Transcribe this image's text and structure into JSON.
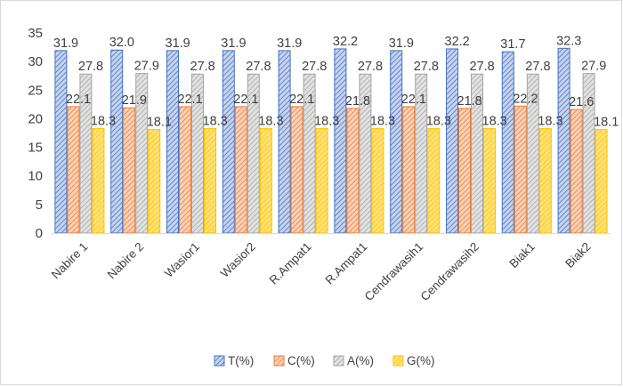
{
  "chart_data": {
    "type": "bar",
    "categories": [
      "Nabire 1",
      "Nabire 2",
      "Wasior1",
      "Wasior2",
      "R.Ampat1",
      "R.Ampat1",
      "Cendrawasih1",
      "Cendrawasih2",
      "Biak1",
      "Biak2"
    ],
    "series": [
      {
        "name": "T(%)",
        "values": [
          31.9,
          32.0,
          31.9,
          31.9,
          31.9,
          32.2,
          31.9,
          32.2,
          31.7,
          32.3
        ],
        "labels": [
          "31.9",
          "32.0",
          "31.9",
          "31.9",
          "31.9",
          "32.2",
          "31.9",
          "32.2",
          "31.7",
          "32.3"
        ],
        "color": "#4472C4",
        "fill": "#c7d4ee"
      },
      {
        "name": "C(%)",
        "values": [
          22.1,
          21.9,
          22.1,
          22.1,
          22.1,
          21.8,
          22.1,
          21.8,
          22.2,
          21.6
        ],
        "labels": [
          "22.1",
          "21.9",
          "22.1",
          "22.1",
          "22.1",
          "21.8",
          "22.1",
          "21.8",
          "22.2",
          "21.6"
        ],
        "color": "#ED7D31",
        "fill": "#f8d2bb"
      },
      {
        "name": "A(%)",
        "values": [
          27.8,
          27.9,
          27.8,
          27.8,
          27.8,
          27.8,
          27.8,
          27.8,
          27.8,
          27.9
        ],
        "labels": [
          "27.8",
          "27.9",
          "27.8",
          "27.8",
          "27.8",
          "27.8",
          "27.8",
          "27.8",
          "27.8",
          "27.9"
        ],
        "color": "#A5A5A5",
        "fill": "#e2e2e2"
      },
      {
        "name": "G(%)",
        "values": [
          18.3,
          18.1,
          18.3,
          18.3,
          18.3,
          18.3,
          18.3,
          18.3,
          18.3,
          18.1
        ],
        "labels": [
          "18.3",
          "18.1",
          "18.3",
          "18.3",
          "18.3",
          "18.3",
          "18.3",
          "18.3",
          "18.3",
          "18.1"
        ],
        "color": "#FFC000",
        "fill": "#ffe37a"
      }
    ],
    "yticks": [
      "0",
      "5",
      "10",
      "15",
      "20",
      "25",
      "30",
      "35"
    ],
    "ylim": [
      0,
      35
    ],
    "title": "",
    "xlabel": "",
    "ylabel": "",
    "grid": false,
    "legend_position": "bottom",
    "bar_pattern": "diagonal-hatch"
  }
}
